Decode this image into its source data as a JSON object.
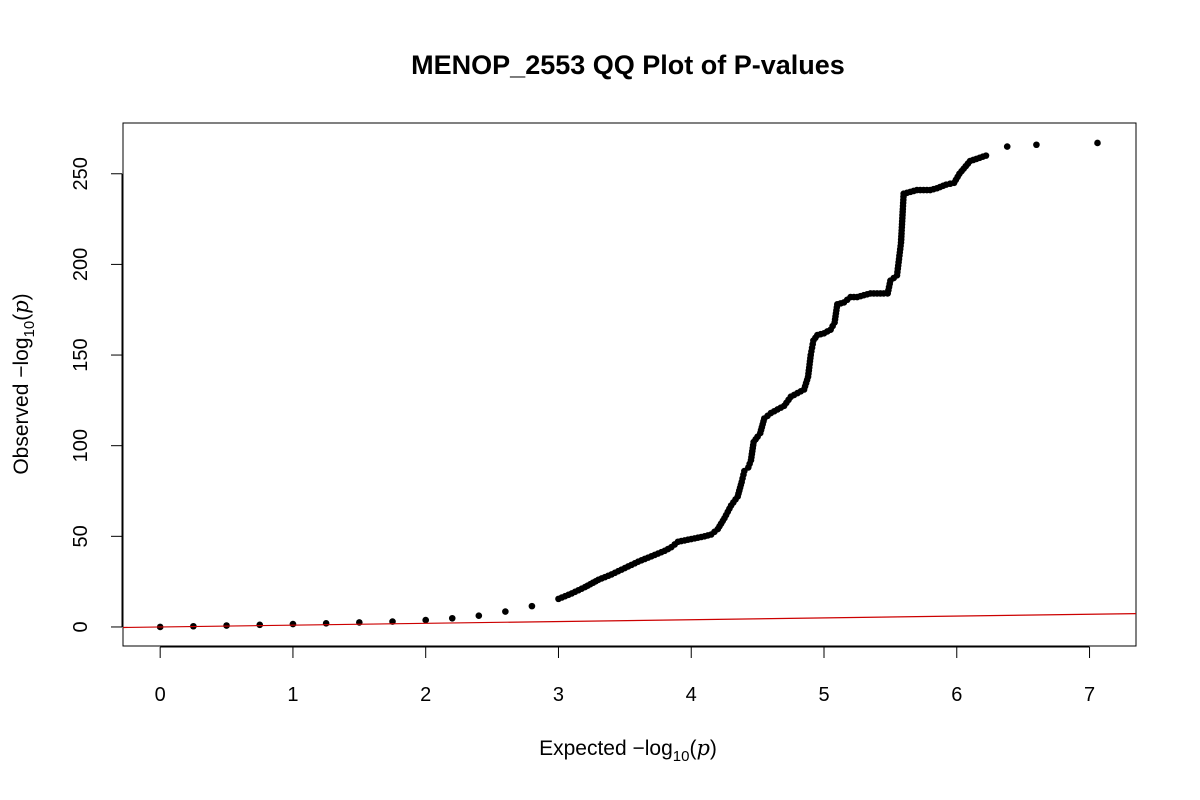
{
  "chart_data": {
    "type": "scatter",
    "title": "MENOP_2553 QQ Plot of P-values",
    "xlabel": {
      "prefix": "Expected ",
      "minus": "−",
      "log": "log",
      "sub": "10",
      "open": "(",
      "var": "p",
      "close": ")"
    },
    "ylabel": {
      "prefix": "Observed ",
      "minus": "−",
      "log": "log",
      "sub": "10",
      "open": "(",
      "var": "p",
      "close": ")"
    },
    "xlim": [
      -0.28,
      7.35
    ],
    "ylim": [
      -10.5,
      278
    ],
    "x_ticks": [
      0,
      1,
      2,
      3,
      4,
      5,
      6,
      7
    ],
    "y_ticks": [
      0,
      50,
      100,
      150,
      200,
      250
    ],
    "grid": false,
    "legend": "none",
    "point_color": "#000000",
    "reference_line": {
      "color": "#cc0000",
      "slope": 1,
      "intercept": 0
    },
    "series": [
      {
        "points": [
          [
            0.0,
            0.0
          ],
          [
            0.25,
            0.4
          ],
          [
            0.5,
            0.8
          ],
          [
            0.75,
            1.2
          ],
          [
            1.0,
            1.6
          ],
          [
            1.25,
            2.0
          ],
          [
            1.5,
            2.5
          ],
          [
            1.75,
            3.0
          ],
          [
            2.0,
            3.8
          ],
          [
            2.2,
            4.8
          ],
          [
            2.4,
            6.2
          ],
          [
            2.6,
            8.5
          ],
          [
            2.8,
            11.5
          ],
          [
            3.0,
            15.5
          ],
          [
            3.1,
            18.5
          ],
          [
            3.2,
            22.0
          ],
          [
            3.3,
            26.0
          ],
          [
            3.4,
            29.0
          ],
          [
            3.5,
            32.5
          ],
          [
            3.6,
            36.0
          ],
          [
            3.7,
            39.0
          ],
          [
            3.8,
            42.0
          ],
          [
            3.85,
            44.0
          ],
          [
            3.9,
            47.0
          ],
          [
            4.0,
            48.5
          ],
          [
            4.1,
            50.0
          ],
          [
            4.15,
            51.0
          ],
          [
            4.2,
            54.0
          ],
          [
            4.25,
            60.0
          ],
          [
            4.3,
            67.0
          ],
          [
            4.35,
            72.0
          ],
          [
            4.38,
            80.0
          ],
          [
            4.4,
            86.0
          ],
          [
            4.43,
            88.0
          ],
          [
            4.45,
            92.0
          ],
          [
            4.47,
            102.0
          ],
          [
            4.5,
            105.0
          ],
          [
            4.52,
            107.0
          ],
          [
            4.55,
            115.0
          ],
          [
            4.6,
            118.0
          ],
          [
            4.65,
            120.0
          ],
          [
            4.7,
            122.0
          ],
          [
            4.75,
            127.0
          ],
          [
            4.8,
            129.0
          ],
          [
            4.85,
            131.0
          ],
          [
            4.88,
            138.0
          ],
          [
            4.9,
            150.0
          ],
          [
            4.92,
            158.0
          ],
          [
            4.95,
            161.0
          ],
          [
            5.0,
            162.0
          ],
          [
            5.05,
            164.0
          ],
          [
            5.08,
            168.0
          ],
          [
            5.1,
            178.0
          ],
          [
            5.15,
            179.0
          ],
          [
            5.2,
            182.0
          ],
          [
            5.25,
            182.0
          ],
          [
            5.3,
            183.0
          ],
          [
            5.35,
            184.0
          ],
          [
            5.4,
            184.0
          ],
          [
            5.45,
            184.0
          ],
          [
            5.48,
            184.0
          ],
          [
            5.5,
            191.0
          ],
          [
            5.55,
            194.0
          ],
          [
            5.58,
            212.0
          ],
          [
            5.6,
            239.0
          ],
          [
            5.65,
            240.0
          ],
          [
            5.7,
            241.0
          ],
          [
            5.75,
            241.0
          ],
          [
            5.8,
            241.0
          ],
          [
            5.85,
            242.0
          ],
          [
            5.92,
            244.0
          ],
          [
            5.98,
            245.0
          ],
          [
            6.02,
            250.0
          ],
          [
            6.1,
            257.0
          ],
          [
            6.22,
            260.0
          ],
          [
            6.38,
            265.0
          ],
          [
            6.6,
            266.0
          ],
          [
            7.06,
            267.0
          ]
        ]
      }
    ]
  }
}
